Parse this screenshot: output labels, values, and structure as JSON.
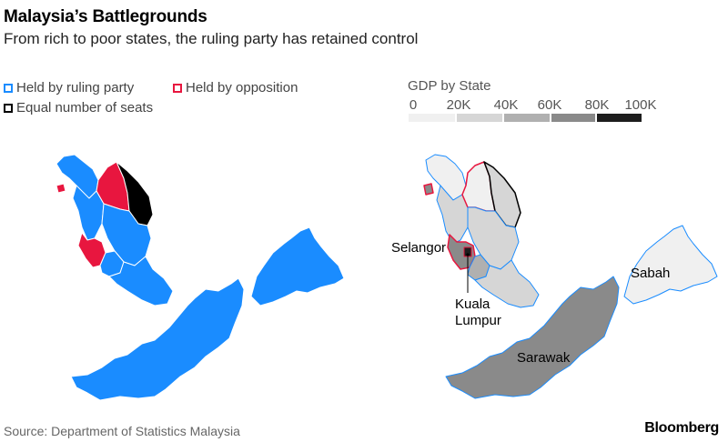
{
  "title": "Malaysia’s Battlegrounds",
  "subtitle": "From rich to poor states, the ruling party has retained control",
  "legend": {
    "ruling": {
      "label": "Held by ruling party",
      "color": "#1a8cff"
    },
    "opposition": {
      "label": "Held by opposition",
      "color": "#e8163f"
    },
    "equal": {
      "label": "Equal number of seats",
      "color": "#000000"
    }
  },
  "gdp_legend": {
    "title": "GDP by State",
    "ticks": [
      "0",
      "20K",
      "40K",
      "60K",
      "80K",
      "100K"
    ],
    "colors": [
      "#f0f0f0",
      "#d6d6d6",
      "#b0b0b0",
      "#8a8a8a",
      "#555555",
      "#1e1e1e"
    ]
  },
  "labels": {
    "selangor": "Selangor",
    "kuala_lumpur_1": "Kuala",
    "kuala_lumpur_2": "Lumpur",
    "sabah": "Sabah",
    "sarawak": "Sarawak"
  },
  "source": "Source: Department of Statistics Malaysia",
  "brand": "Bloomberg"
}
